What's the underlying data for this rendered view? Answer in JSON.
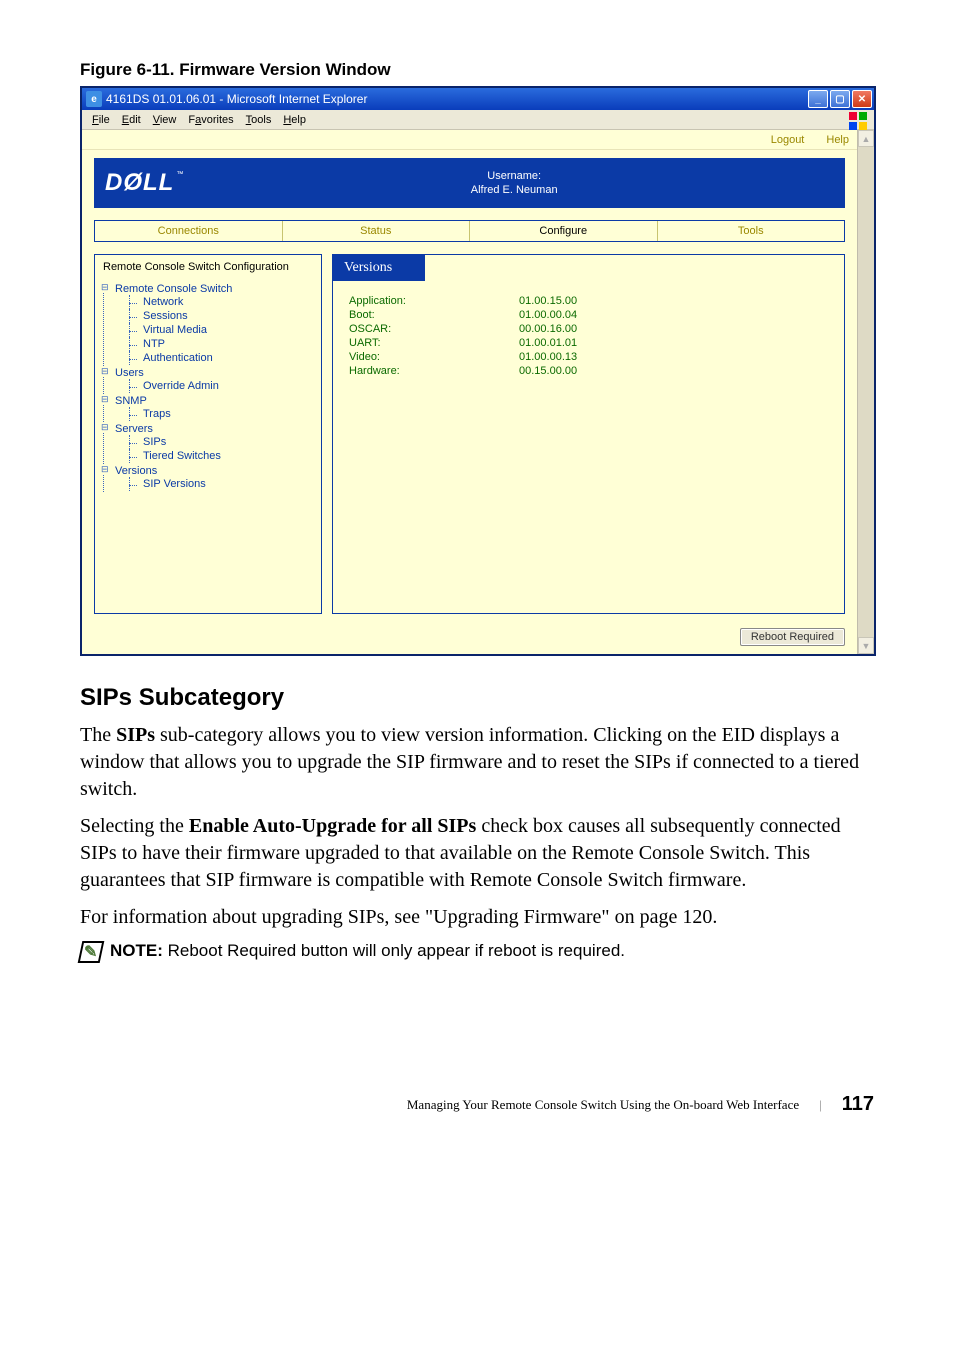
{
  "figure_caption": "Figure 6-11.    Firmware Version Window",
  "window": {
    "title": "4161DS 01.01.06.01 - Microsoft Internet Explorer",
    "menubar": [
      "File",
      "Edit",
      "View",
      "Favorites",
      "Tools",
      "Help"
    ],
    "topbar": {
      "logout": "Logout",
      "help": "Help"
    },
    "logo": "DØLL",
    "logo_tm": "™",
    "username_label": "Username:",
    "username_value": "Alfred E. Neuman",
    "tabs": [
      {
        "label": "Connections",
        "active": false
      },
      {
        "label": "Status",
        "active": false
      },
      {
        "label": "Configure",
        "active": true
      },
      {
        "label": "Tools",
        "active": false
      }
    ],
    "tree_header": "Remote Console Switch Configuration",
    "tree": [
      {
        "label": "Remote Console Switch",
        "children": [
          {
            "label": "Network"
          },
          {
            "label": "Sessions"
          },
          {
            "label": "Virtual Media"
          },
          {
            "label": "NTP"
          },
          {
            "label": "Authentication"
          }
        ]
      },
      {
        "label": "Users",
        "children": [
          {
            "label": "Override Admin"
          }
        ]
      },
      {
        "label": "SNMP",
        "children": [
          {
            "label": "Traps"
          }
        ]
      },
      {
        "label": "Servers",
        "children": [
          {
            "label": "SIPs"
          },
          {
            "label": "Tiered Switches"
          }
        ]
      },
      {
        "label": "Versions",
        "children": [
          {
            "label": "SIP Versions"
          }
        ]
      }
    ],
    "right_header": "Versions",
    "versions": [
      {
        "label": "Application:",
        "value": "01.00.15.00"
      },
      {
        "label": "Boot:",
        "value": "01.00.00.04"
      },
      {
        "label": "OSCAR:",
        "value": "00.00.16.00"
      },
      {
        "label": "UART:",
        "value": "01.00.01.01"
      },
      {
        "label": "Video:",
        "value": "01.00.00.13"
      },
      {
        "label": "Hardware:",
        "value": "00.15.00.00"
      }
    ],
    "reboot_button": "Reboot Required",
    "win_buttons": {
      "min": "_",
      "max": "▢",
      "close": "✕"
    }
  },
  "section_heading": "SIPs Subcategory",
  "para1_pre": "The ",
  "para1_bold": "SIPs",
  "para1_post": " sub-category allows you to view version information. Clicking on the EID displays a window that allows you to upgrade the SIP firmware and to reset the SIPs if connected to a tiered switch.",
  "para2_pre": "Selecting the ",
  "para2_bold": "Enable Auto-Upgrade for all SIPs",
  "para2_post": " check box causes all subsequently connected SIPs to have their firmware upgraded to that available on the Remote Console Switch. This guarantees that SIP firmware is compatible with Remote Console Switch firmware.",
  "para3": "For information about upgrading SIPs, see \"Upgrading Firmware\" on page 120.",
  "note_label": "NOTE:",
  "note_text": " Reboot Required button will only appear if reboot is required.",
  "footer_text": "Managing Your Remote Console Switch Using the On-board Web Interface",
  "footer_page": "117",
  "colors": {
    "win_border": "#0a246a",
    "content_bg": "#ffffd6",
    "accent_blue": "#0b3aa6",
    "olive_text": "#9a8800",
    "green_text": "#0b6a00"
  }
}
